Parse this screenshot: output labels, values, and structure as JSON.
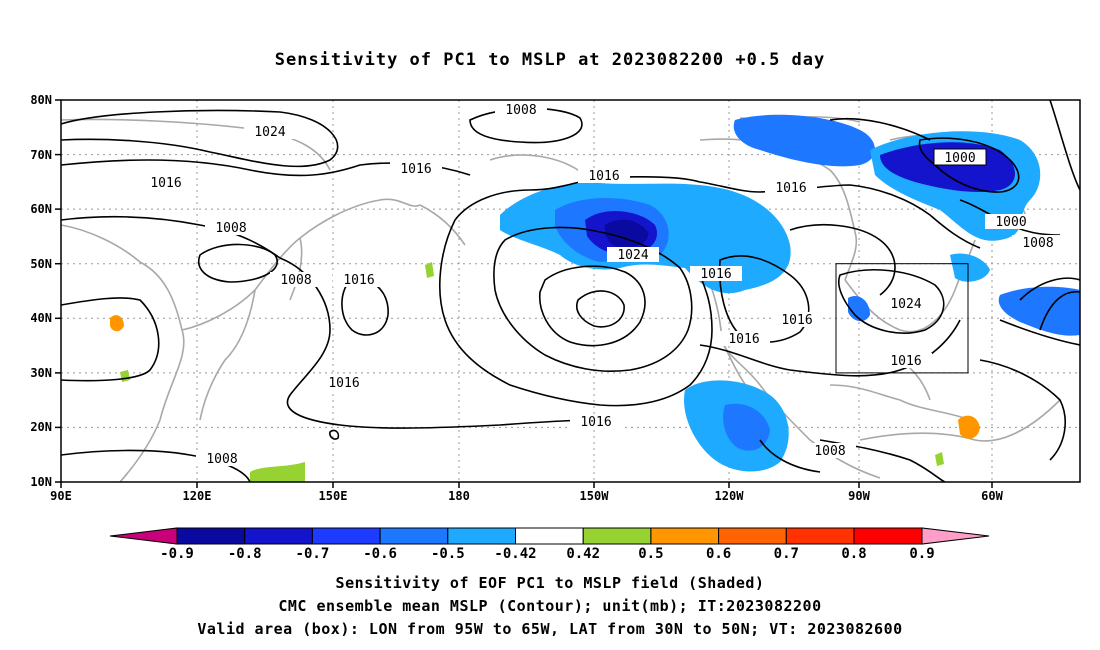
{
  "title": "Sensitivity of PC1 to MSLP at 2023082200 +0.5 day",
  "axes": {
    "lat_ticks": [
      "80N",
      "70N",
      "60N",
      "50N",
      "40N",
      "30N",
      "20N",
      "10N"
    ],
    "lon_ticks": [
      "90E",
      "120E",
      "150E",
      "180",
      "150W",
      "120W",
      "90W",
      "60W"
    ]
  },
  "contours": {
    "unit": "mb",
    "labels": [
      "1024",
      "1008",
      "1016",
      "1016",
      "1008",
      "1008",
      "1016",
      "1016",
      "1008",
      "1016",
      "1024",
      "1016",
      "1016",
      "1016",
      "1016",
      "1000",
      "1000",
      "1008",
      "1016",
      "1024",
      "1016",
      "1008"
    ]
  },
  "valid_area": {
    "lon": [
      "95W",
      "65W"
    ],
    "lat": [
      "30N",
      "50N"
    ]
  },
  "colorbar": {
    "labels": [
      "-0.9",
      "-0.8",
      "-0.7",
      "-0.6",
      "-0.5",
      "-0.42",
      "0.42",
      "0.5",
      "0.6",
      "0.7",
      "0.8",
      "0.9"
    ],
    "colors": [
      "#0a0aa0",
      "#1414cc",
      "#1e3cff",
      "#1e78ff",
      "#1eaaff",
      "#ffffff",
      "#96d232",
      "#ff9600",
      "#ff6400",
      "#ff3200",
      "#ff0000"
    ],
    "low_end_color": "#c8007a",
    "high_end_color": "#ff9ec8"
  },
  "captions": {
    "line1": "Sensitivity of EOF PC1 to MSLP field (Shaded)",
    "line2": "CMC ensemble mean MSLP (Contour); unit(mb); IT:2023082200",
    "line3": "Valid area (box): LON from 95W to 65W, LAT from 30N to 50N; VT: 2023082600"
  }
}
